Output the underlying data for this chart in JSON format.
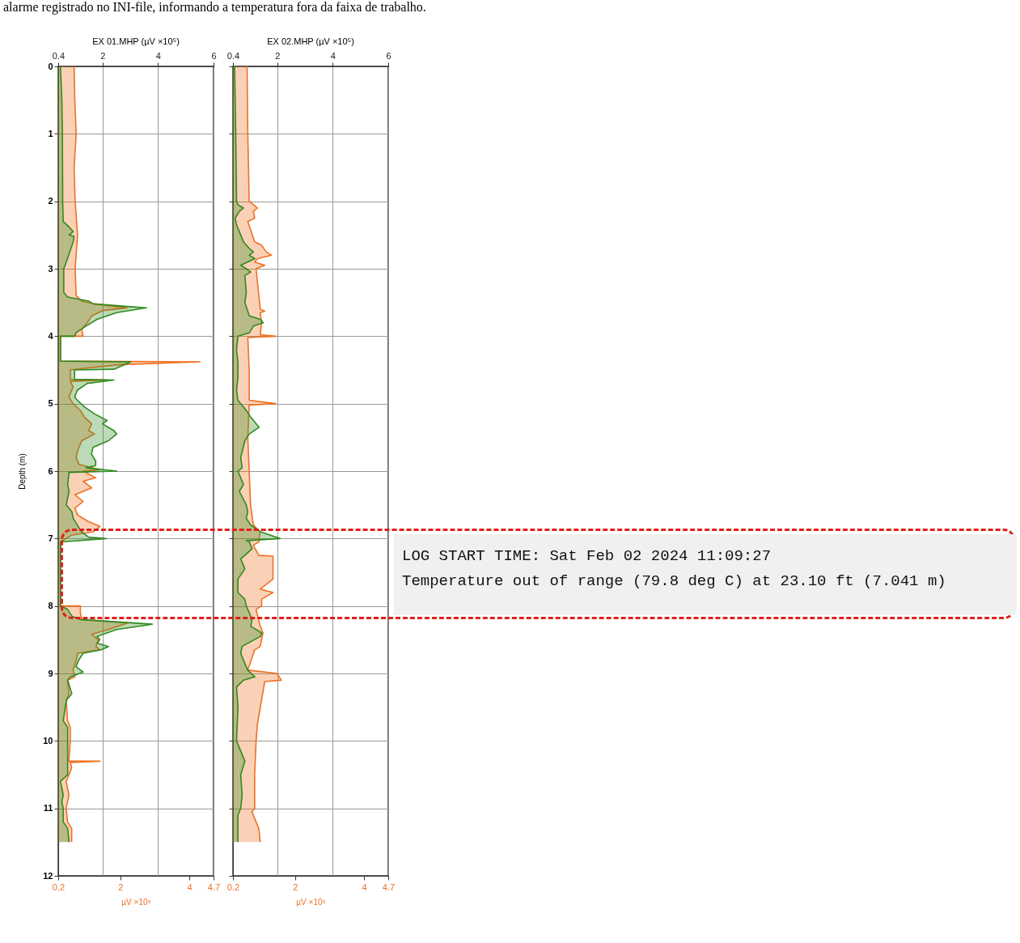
{
  "chart_data": [
    {
      "type": "area",
      "title": "EX 01.MHP (µV ×10⁵)",
      "ylabel": "Depth (m)",
      "xlabel": "µV ×10⁵",
      "orientation": "horizontal",
      "grid": true,
      "annotations": [
        "alarme registrado no INI-file, informando a temperatura fora da faixa de trabalho."
      ],
      "ylim": [
        12,
        0
      ],
      "yticks": [
        0,
        1,
        2,
        3,
        4,
        5,
        6,
        7,
        8,
        9,
        10,
        11,
        12
      ],
      "xlim": [
        0.2,
        4.7
      ],
      "xticks": [
        0.2,
        2,
        4,
        4.7
      ],
      "x2lim": [
        0.4,
        6
      ],
      "x2ticks": [
        0.4,
        2,
        4,
        6
      ],
      "series": [
        {
          "color": "#f07020",
          "x": [
            0,
            0.5,
            1,
            1.5,
            2,
            2.5,
            3,
            3.4,
            3.48,
            3.52,
            3.58,
            3.62,
            3.7,
            3.8,
            3.9,
            4,
            4,
            4.37,
            4.38,
            4.42,
            4.47,
            4.5,
            4.64,
            4.65,
            4.67,
            4.75,
            4.9,
            5,
            5.1,
            5.2,
            5.3,
            5.4,
            5.45,
            5.55,
            5.7,
            5.8,
            5.9,
            5.98,
            6,
            6.1,
            6.15,
            6.25,
            6.35,
            6.45,
            6.55,
            6.65,
            6.75,
            6.82,
            6.9,
            6.95,
            7.05,
            8,
            8,
            8.1,
            8.2,
            8.25,
            8.35,
            8.42,
            8.5,
            8.6,
            8.65,
            8.7,
            8.8,
            8.95,
            9.05,
            9.1,
            9.3,
            9.4,
            9.7,
            9.8,
            10,
            10.3,
            10.3,
            10.32,
            10.4,
            10.6,
            10.8,
            11,
            11.2,
            11.3,
            11.5
          ],
          "values": [
            0.66,
            0.68,
            0.72,
            0.66,
            0.69,
            0.76,
            0.69,
            0.72,
            0.88,
            1.25,
            2.19,
            1.49,
            1.17,
            1.04,
            0.88,
            0.92,
            0.27,
            0.27,
            4.31,
            2.06,
            1.08,
            0.55,
            0.55,
            1.61,
            0.55,
            0.63,
            0.51,
            0.63,
            0.84,
            0.96,
            1.17,
            1.08,
            1.25,
            0.88,
            0.76,
            0.72,
            0.8,
            1.41,
            0.92,
            1.29,
            0.92,
            1.17,
            0.68,
            0.92,
            0.68,
            0.76,
            1.08,
            1.41,
            1.21,
            0.59,
            0.27,
            0.27,
            0.84,
            0.84,
            0.88,
            2.23,
            1.65,
            1.17,
            1.37,
            1.29,
            1.41,
            0.76,
            0.72,
            0.63,
            0.68,
            0.47,
            0.51,
            0.43,
            0.47,
            0.55,
            0.55,
            0.51,
            1.41,
            0.55,
            0.59,
            0.43,
            0.51,
            0.43,
            0.47,
            0.59,
            0.59
          ]
        },
        {
          "color": "#2e8b1e",
          "axis": "x2",
          "x": [
            0,
            0.5,
            1,
            2,
            2.3,
            2.38,
            2.45,
            2.5,
            2.52,
            2.6,
            2.9,
            3,
            3.35,
            3.42,
            3.48,
            3.52,
            3.58,
            3.65,
            3.75,
            3.85,
            3.95,
            4,
            4,
            4.37,
            4.38,
            4.49,
            4.5,
            4.64,
            4.65,
            4.7,
            4.8,
            4.9,
            4.95,
            5.05,
            5.15,
            5.25,
            5.3,
            5.4,
            5.45,
            5.55,
            5.65,
            5.75,
            5.85,
            5.92,
            5.95,
            6,
            6.02,
            6.2,
            6.3,
            6.5,
            6.6,
            6.7,
            6.8,
            6.9,
            6.98,
            7,
            7.05,
            8,
            8.05,
            8.15,
            8.2,
            8.27,
            8.35,
            8.45,
            8.5,
            8.55,
            8.6,
            8.65,
            8.7,
            8.8,
            8.9,
            8.98,
            9.05,
            9.1,
            9.3,
            9.4,
            9.7,
            9.8,
            10,
            10.3,
            10.5,
            10.6,
            10.8,
            10.9,
            11,
            11.2,
            11.3,
            11.5
          ],
          "values": [
            0.48,
            0.53,
            0.55,
            0.56,
            0.58,
            0.79,
            0.94,
            0.79,
            0.97,
            0.94,
            0.69,
            0.6,
            0.6,
            0.74,
            1.5,
            1.65,
            3.58,
            2.5,
            1.8,
            1.4,
            1.04,
            0.99,
            0.48,
            0.48,
            3.02,
            2.41,
            0.99,
            0.99,
            2.41,
            1.45,
            1.09,
            0.99,
            1.09,
            1.35,
            1.7,
            2.16,
            2,
            2.41,
            2.51,
            2.21,
            1.65,
            1.6,
            1.75,
            1.75,
            1.4,
            2.51,
            0.79,
            0.74,
            0.79,
            0.69,
            0.89,
            0.94,
            1.09,
            1.24,
            1.5,
            2.13,
            0.48,
            0.48,
            0.74,
            0.89,
            1.19,
            3.79,
            2.5,
            1.8,
            1.9,
            1.8,
            2.21,
            1.95,
            1.3,
            1.14,
            1.04,
            1.3,
            0.84,
            0.74,
            0.89,
            0.69,
            0.58,
            0.74,
            0.74,
            0.74,
            0.74,
            0.48,
            0.58,
            0.53,
            0.58,
            0.58,
            0.74,
            0.79
          ]
        }
      ]
    },
    {
      "type": "area",
      "title": "EX 02.MHP (µV ×10⁵)",
      "xlabel": "µV ×10⁵",
      "orientation": "horizontal",
      "grid": true,
      "tick_labels": "x",
      "annotations": [
        "LOG START TIME: Sat Feb 02 2024 11:09:27",
        "Temperature out of range (79.8 deg C) at 23.10 ft (7.041 m)"
      ],
      "ylim": [
        12,
        0
      ],
      "yticks": [
        0,
        1,
        2,
        3,
        4,
        5,
        6,
        7,
        8,
        9,
        10,
        11,
        12
      ],
      "xlim": [
        0.2,
        4.7
      ],
      "xticks": [
        0.2,
        2,
        4,
        4.7
      ],
      "x2lim": [
        0.4,
        6
      ],
      "x2ticks": [
        0.4,
        2,
        4,
        6
      ],
      "series": [
        {
          "color": "#f07020",
          "x": [
            0,
            1,
            2,
            2.1,
            2.15,
            2.25,
            2.3,
            2.6,
            2.65,
            2.75,
            2.8,
            2.85,
            2.9,
            2.95,
            3,
            3.2,
            3.6,
            3.63,
            3.65,
            3.8,
            3.98,
            4,
            4.02,
            4.5,
            4.95,
            5,
            5.02,
            5.5,
            6,
            6.5,
            6.8,
            6.9,
            7.05,
            7.1,
            7.25,
            7.26,
            7.6,
            7.75,
            7.8,
            7.9,
            8,
            8.05,
            8.3,
            8.4,
            8.6,
            8.65,
            8.95,
            9,
            9.1,
            9.12,
            9.75,
            10,
            10.5,
            11,
            11.05,
            11.3,
            11.5
          ],
          "values": [
            0.61,
            0.63,
            0.67,
            0.91,
            0.79,
            0.83,
            0.63,
            0.83,
            1.03,
            1.16,
            1.32,
            0.91,
            0.83,
            1.12,
            0.87,
            0.91,
            0.99,
            1.12,
            0.99,
            1.03,
            0.99,
            1.44,
            0.63,
            0.67,
            0.67,
            1.44,
            0.67,
            0.63,
            0.67,
            0.71,
            0.79,
            0.99,
            0.95,
            0.79,
            0.95,
            1.36,
            1.36,
            0.99,
            1.36,
            1.03,
            1.03,
            0.87,
            0.99,
            1.07,
            0.99,
            0.83,
            0.63,
            1.48,
            1.6,
            1.12,
            0.91,
            0.87,
            0.83,
            0.83,
            0.75,
            0.95,
            0.99
          ]
        },
        {
          "color": "#2e8b1e",
          "axis": "x2",
          "x": [
            0,
            1,
            2,
            2.05,
            2.1,
            2.15,
            2.25,
            2.35,
            2.6,
            2.7,
            2.75,
            2.8,
            2.85,
            2.95,
            3,
            3.05,
            3.1,
            3.35,
            3.5,
            3.7,
            3.75,
            3.8,
            3.85,
            3.95,
            4,
            4.2,
            4.4,
            4.6,
            4.8,
            4.95,
            5,
            5.1,
            5.2,
            5.35,
            5.45,
            5.55,
            5.8,
            5.95,
            6,
            6.2,
            6.3,
            6.5,
            6.6,
            6.7,
            6.8,
            6.9,
            7,
            7.03,
            7.05,
            7.15,
            7.25,
            7.3,
            7.45,
            7.6,
            7.8,
            7.9,
            8,
            8.1,
            8.2,
            8.3,
            8.4,
            8.45,
            8.6,
            8.7,
            8.95,
            9.05,
            9.1,
            9.2,
            9.5,
            10,
            10.1,
            10.3,
            10.5,
            10.8,
            11,
            11.1,
            11.5
          ],
          "values": [
            0.46,
            0.5,
            0.53,
            0.58,
            0.78,
            0.63,
            0.48,
            0.53,
            0.78,
            0.99,
            1.14,
            0.99,
            1.19,
            0.68,
            0.88,
            1.04,
            0.83,
            0.88,
            0.83,
            0.99,
            1.39,
            1.49,
            1.14,
            0.99,
            0.58,
            0.53,
            0.58,
            0.58,
            0.53,
            0.58,
            0.68,
            0.88,
            1.04,
            1.34,
            0.99,
            0.83,
            0.68,
            0.73,
            0.58,
            0.78,
            0.63,
            0.88,
            0.93,
            0.88,
            1.04,
            1.39,
            2.1,
            0.88,
            0.99,
            1.09,
            0.83,
            0.68,
            0.83,
            0.58,
            0.58,
            0.83,
            0.88,
            0.99,
            1.09,
            1.04,
            1.44,
            1.39,
            0.73,
            0.68,
            0.93,
            1.19,
            0.78,
            0.53,
            0.58,
            0.53,
            0.63,
            0.83,
            0.68,
            0.73,
            0.68,
            0.58,
            0.58
          ]
        }
      ]
    }
  ]
}
